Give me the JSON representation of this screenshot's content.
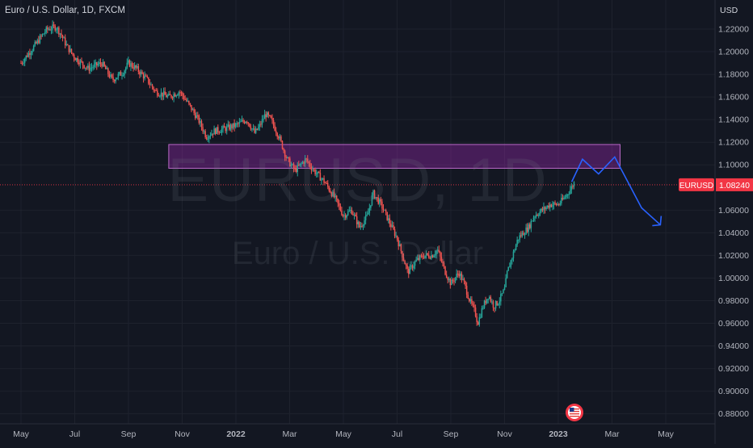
{
  "header": {
    "title": "Euro / U.S. Dollar, 1D, FXCM",
    "currency": "USD"
  },
  "watermark": {
    "symbol": "EURUSD, 1D",
    "name": "Euro / U.S. Dollar"
  },
  "price_label": {
    "symbol": "EURUSD",
    "value": "1.08240",
    "color": "#f23645"
  },
  "colors": {
    "background": "#131722",
    "grid": "#1e222d",
    "up": "#26a69a",
    "down": "#ef5350",
    "zone_fill": "#9c27b0",
    "projection": "#2962ff"
  },
  "flag_icon": "us-flag-icon",
  "chart_data": {
    "type": "candlestick",
    "title": "Euro / U.S. Dollar, 1D, FXCM",
    "ylabel": "USD",
    "ylim": [
      0.87,
      1.24
    ],
    "yticks": [
      "1.22000",
      "1.20000",
      "1.18000",
      "1.16000",
      "1.14000",
      "1.12000",
      "1.10000",
      "1.06000",
      "1.04000",
      "1.02000",
      "1.00000",
      "0.98000",
      "0.96000",
      "0.94000",
      "0.92000",
      "0.90000",
      "0.88000"
    ],
    "xticks": [
      {
        "label": "May",
        "month": 0
      },
      {
        "label": "Jul",
        "month": 2
      },
      {
        "label": "Sep",
        "month": 4
      },
      {
        "label": "Nov",
        "month": 6
      },
      {
        "label": "2022",
        "month": 8
      },
      {
        "label": "Mar",
        "month": 10
      },
      {
        "label": "May",
        "month": 12
      },
      {
        "label": "Jul",
        "month": 14
      },
      {
        "label": "Sep",
        "month": 16
      },
      {
        "label": "Nov",
        "month": 18
      },
      {
        "label": "2023",
        "month": 20
      },
      {
        "label": "Mar",
        "month": 22
      },
      {
        "label": "May",
        "month": 24
      }
    ],
    "price_path": [
      [
        0,
        1.19
      ],
      [
        0.5,
        1.205
      ],
      [
        0.9,
        1.218
      ],
      [
        1.0,
        1.22
      ],
      [
        1.3,
        1.222
      ],
      [
        1.5,
        1.215
      ],
      [
        1.7,
        1.205
      ],
      [
        2.0,
        1.195
      ],
      [
        2.5,
        1.185
      ],
      [
        3.0,
        1.19
      ],
      [
        3.4,
        1.175
      ],
      [
        3.8,
        1.182
      ],
      [
        4.0,
        1.19
      ],
      [
        4.3,
        1.185
      ],
      [
        4.7,
        1.175
      ],
      [
        5.0,
        1.165
      ],
      [
        5.5,
        1.16
      ],
      [
        5.9,
        1.165
      ],
      [
        6.2,
        1.155
      ],
      [
        6.6,
        1.14
      ],
      [
        6.9,
        1.125
      ],
      [
        7.2,
        1.13
      ],
      [
        7.6,
        1.132
      ],
      [
        8.0,
        1.135
      ],
      [
        8.4,
        1.14
      ],
      [
        8.7,
        1.128
      ],
      [
        8.9,
        1.135
      ],
      [
        9.1,
        1.145
      ],
      [
        9.3,
        1.14
      ],
      [
        9.6,
        1.125
      ],
      [
        9.9,
        1.105
      ],
      [
        10.2,
        1.095
      ],
      [
        10.6,
        1.105
      ],
      [
        10.9,
        1.095
      ],
      [
        11.3,
        1.085
      ],
      [
        11.7,
        1.07
      ],
      [
        12.0,
        1.055
      ],
      [
        12.3,
        1.06
      ],
      [
        12.6,
        1.045
      ],
      [
        12.9,
        1.055
      ],
      [
        13.1,
        1.075
      ],
      [
        13.4,
        1.065
      ],
      [
        13.7,
        1.05
      ],
      [
        14.0,
        1.035
      ],
      [
        14.2,
        1.02
      ],
      [
        14.4,
        1.005
      ],
      [
        14.7,
        1.015
      ],
      [
        15.0,
        1.02
      ],
      [
        15.3,
        1.02
      ],
      [
        15.5,
        1.025
      ],
      [
        15.8,
        1.005
      ],
      [
        16.0,
        0.995
      ],
      [
        16.3,
        1.005
      ],
      [
        16.5,
        0.995
      ],
      [
        16.7,
        0.98
      ],
      [
        16.9,
        0.97
      ],
      [
        17.0,
        0.96
      ],
      [
        17.2,
        0.975
      ],
      [
        17.4,
        0.985
      ],
      [
        17.6,
        0.975
      ],
      [
        17.8,
        0.98
      ],
      [
        18.0,
        0.99
      ],
      [
        18.1,
        1.005
      ],
      [
        18.3,
        1.02
      ],
      [
        18.5,
        1.035
      ],
      [
        18.7,
        1.04
      ],
      [
        18.9,
        1.045
      ],
      [
        19.1,
        1.055
      ],
      [
        19.4,
        1.06
      ],
      [
        19.7,
        1.065
      ],
      [
        20.0,
        1.065
      ],
      [
        20.2,
        1.07
      ],
      [
        20.5,
        1.08
      ],
      [
        20.6,
        1.085
      ]
    ],
    "resistance_zone": {
      "y_top": 1.118,
      "y_bottom": 1.097,
      "x_start_month": 5.5,
      "x_end_month": 22.3,
      "label": ""
    },
    "current_price": 1.0824,
    "projection_path": [
      [
        20.5,
        1.085
      ],
      [
        20.9,
        1.105
      ],
      [
        21.5,
        1.092
      ],
      [
        22.1,
        1.107
      ],
      [
        23.1,
        1.062
      ],
      [
        23.8,
        1.047
      ]
    ]
  }
}
